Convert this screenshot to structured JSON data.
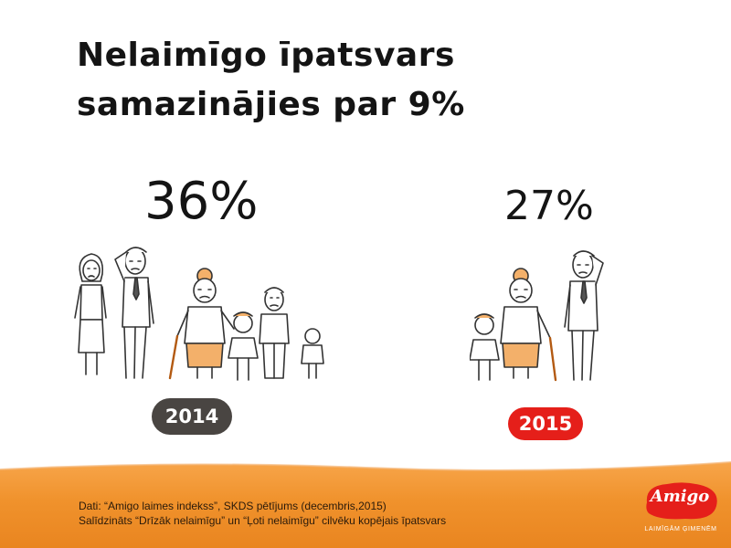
{
  "slide": {
    "title_line1": "Nelaimīgo īpatsvars",
    "title_line2": "samazinājies par 9%",
    "colors": {
      "dark_badge": "#494542",
      "red_badge": "#e51f1a",
      "band": "#f0922c"
    }
  },
  "stat_2014": {
    "percent": "36%",
    "year": "2014",
    "people": [
      "woman",
      "man-with-tie",
      "grandmother",
      "girl",
      "man",
      "child"
    ]
  },
  "stat_2015": {
    "percent": "27%",
    "year": "2015",
    "people": [
      "girl",
      "grandmother",
      "man-with-tie"
    ]
  },
  "footer": {
    "source_line1": "Dati: “Amigo laimes indekss”, SKDS pētījums (decembris,2015)",
    "source_line2": "Salīdzināts “Drīzāk nelaimīgu” un “Ļoti nelaimīgu” cilvēku kopējais īpatsvars"
  },
  "logo": {
    "brand": "Amigo",
    "tagline": "LAIMĪGĀM ĢIMENĒM"
  }
}
